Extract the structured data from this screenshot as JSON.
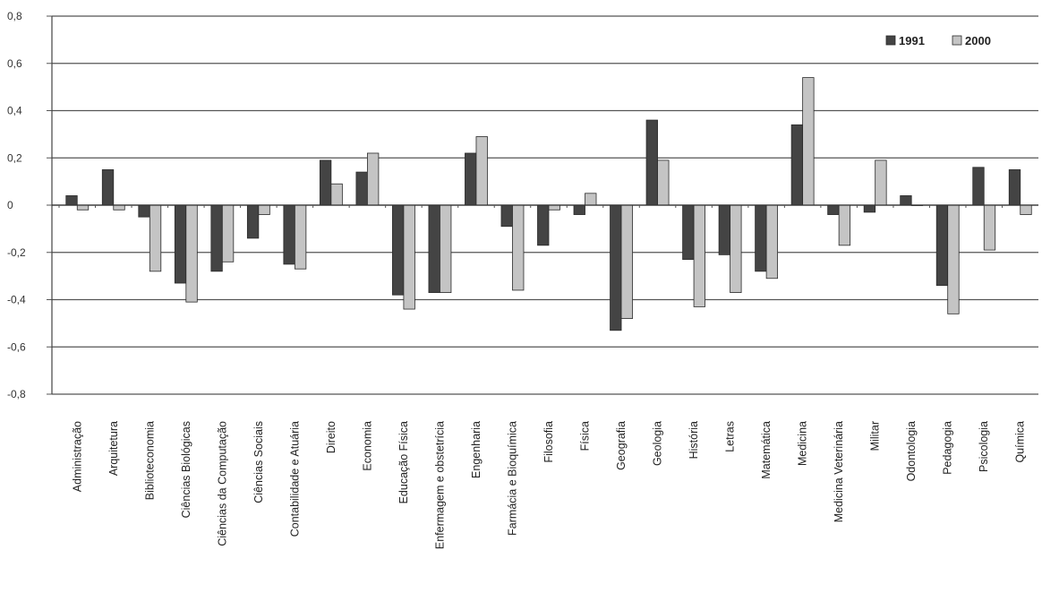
{
  "chart_data": {
    "type": "bar",
    "title": "",
    "xlabel": "",
    "ylabel": "",
    "ylim": [
      -0.8,
      0.8
    ],
    "yticks": [
      "0,8",
      "0,6",
      "0,4",
      "0,2",
      "0",
      "-0,2",
      "-0,4",
      "-0,6",
      "-0,8"
    ],
    "grid": true,
    "legend_position": "top-right",
    "categories": [
      "Administração",
      "Arquitetura",
      "Biblioteconomia",
      "Ciências Biológicas",
      "Ciências da Computação",
      "Ciências Sociais",
      "Contabilidade e Atuária",
      "Direito",
      "Economia",
      "Educação Física",
      "Enfermagem e obstetrícia",
      "Engenharia",
      "Farmácia e Bioquímica",
      "Filosofia",
      "Física",
      "Geografia",
      "Geologia",
      "História",
      "Letras",
      "Matemática",
      "Medicina",
      "Medicina Veterinária",
      "Militar",
      "Odontologia",
      "Pedagogia",
      "Psicologia",
      "Química"
    ],
    "series": [
      {
        "name": "1991",
        "color": "#444444",
        "values": [
          0.04,
          0.15,
          -0.05,
          -0.33,
          -0.28,
          -0.14,
          -0.25,
          0.19,
          0.14,
          -0.38,
          -0.37,
          0.22,
          -0.09,
          -0.17,
          -0.04,
          -0.53,
          0.36,
          -0.23,
          -0.21,
          -0.28,
          0.34,
          -0.04,
          -0.03,
          0.04,
          -0.34,
          0.16,
          0.15
        ]
      },
      {
        "name": "2000",
        "color": "#c4c4c4",
        "values": [
          -0.02,
          -0.02,
          -0.28,
          -0.41,
          -0.24,
          -0.04,
          -0.27,
          0.09,
          0.22,
          -0.44,
          -0.37,
          0.29,
          -0.36,
          -0.02,
          0.05,
          -0.48,
          0.19,
          -0.43,
          -0.37,
          -0.31,
          0.54,
          -0.17,
          0.19,
          0.0,
          -0.46,
          -0.19,
          -0.04
        ]
      }
    ]
  }
}
